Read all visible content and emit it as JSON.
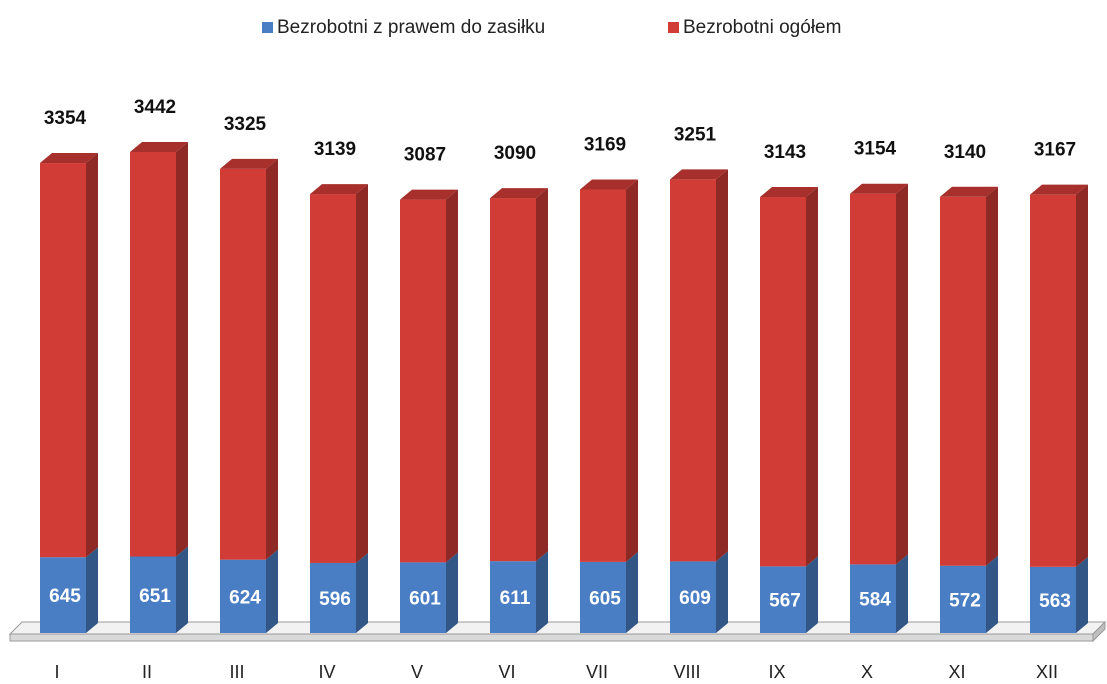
{
  "chart_data": {
    "type": "bar",
    "stacked": true,
    "categories": [
      "I",
      "II",
      "III",
      "IV",
      "V",
      "VI",
      "VII",
      "VIII",
      "IX",
      "X",
      "XI",
      "XII"
    ],
    "series": [
      {
        "name": "Bezrobotni z prawem do zasiłku",
        "color": "#4a7ec4",
        "values": [
          645,
          651,
          624,
          596,
          601,
          611,
          605,
          609,
          567,
          584,
          572,
          563
        ]
      },
      {
        "name": "Bezrobotni ogółem",
        "color": "#d13c37",
        "values": [
          3354,
          3442,
          3325,
          3139,
          3087,
          3090,
          3169,
          3251,
          3143,
          3154,
          3140,
          3167
        ]
      }
    ],
    "legend": "top"
  }
}
